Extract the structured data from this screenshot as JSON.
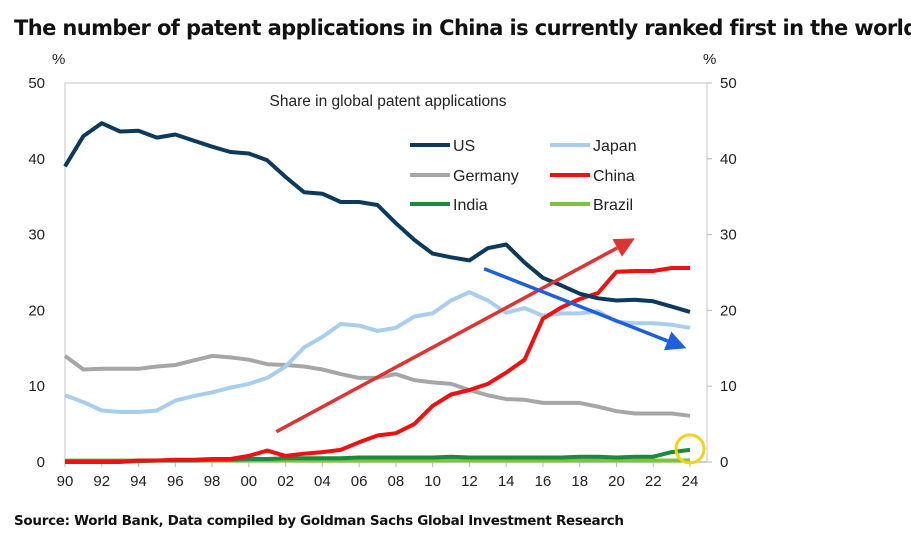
{
  "title": "The number of patent applications in China is currently ranked first in the world",
  "source": "Source: World Bank, Data compiled by Goldman Sachs Global Investment Research",
  "chart_data": {
    "type": "line",
    "title": "Share in global patent applications",
    "ylabel_left": "%",
    "ylabel_right": "%",
    "ylim": [
      0,
      50
    ],
    "yticks": [
      0,
      10,
      20,
      30,
      40,
      50
    ],
    "xlim": [
      1990,
      2024
    ],
    "xtick_labels": [
      "90",
      "92",
      "94",
      "96",
      "98",
      "00",
      "02",
      "04",
      "06",
      "08",
      "10",
      "12",
      "14",
      "16",
      "18",
      "20",
      "22",
      "24"
    ],
    "grid": false,
    "legend": "top-center",
    "x": [
      1990,
      1991,
      1992,
      1993,
      1994,
      1995,
      1996,
      1997,
      1998,
      1999,
      2000,
      2001,
      2002,
      2003,
      2004,
      2005,
      2006,
      2007,
      2008,
      2009,
      2010,
      2011,
      2012,
      2013,
      2014,
      2015,
      2016,
      2017,
      2018,
      2019,
      2020,
      2021,
      2022,
      2023,
      2024
    ],
    "series": [
      {
        "name": "US",
        "color": "#0d3a5c",
        "values": [
          39,
          43,
          44.7,
          43.6,
          43.7,
          42.8,
          43.2,
          42.4,
          41.6,
          40.9,
          40.7,
          39.8,
          37.6,
          35.6,
          35.4,
          34.3,
          34.3,
          33.9,
          31.5,
          29.3,
          27.5,
          27,
          26.6,
          28.2,
          28.7,
          26.3,
          24.3,
          23.3,
          22.2,
          21.6,
          21.3,
          21.4,
          21.2,
          20.5,
          19.8
        ]
      },
      {
        "name": "Japan",
        "color": "#a9cdee",
        "values": [
          8.8,
          7.9,
          6.8,
          6.6,
          6.6,
          6.8,
          8.1,
          8.7,
          9.2,
          9.8,
          10.3,
          11.1,
          12.6,
          15.1,
          16.5,
          18.2,
          18.0,
          17.3,
          17.7,
          19.2,
          19.6,
          21.3,
          22.4,
          21.3,
          19.7,
          20.3,
          19.3,
          19.6,
          19.6,
          19.9,
          18.5,
          18.3,
          18.3,
          18.1,
          17.7
        ]
      },
      {
        "name": "Germany",
        "color": "#a6a6a6",
        "values": [
          14,
          12.2,
          12.3,
          12.3,
          12.3,
          12.6,
          12.8,
          13.4,
          14.0,
          13.8,
          13.5,
          12.9,
          12.8,
          12.6,
          12.2,
          11.6,
          11.1,
          11.1,
          11.6,
          10.8,
          10.5,
          10.3,
          9.5,
          8.8,
          8.3,
          8.2,
          7.8,
          7.8,
          7.8,
          7.3,
          6.7,
          6.4,
          6.4,
          6.4,
          6.1
        ]
      },
      {
        "name": "China",
        "color": "#ee1111",
        "values": [
          0,
          0,
          0,
          0,
          0.2,
          0.2,
          0.3,
          0.3,
          0.4,
          0.4,
          0.8,
          1.5,
          0.8,
          1.1,
          1.3,
          1.6,
          2.6,
          3.5,
          3.8,
          5.0,
          7.4,
          8.9,
          9.5,
          10.3,
          11.8,
          13.5,
          18.9,
          20.4,
          21.5,
          22.3,
          25.1,
          25.2,
          25.2,
          25.6,
          25.6
        ]
      },
      {
        "name": "India",
        "color": "#1a8a3c",
        "values": [
          0.1,
          0.1,
          0.1,
          0.1,
          0.1,
          0.2,
          0.2,
          0.2,
          0.3,
          0.3,
          0.4,
          0.4,
          0.5,
          0.5,
          0.5,
          0.5,
          0.6,
          0.6,
          0.6,
          0.6,
          0.6,
          0.7,
          0.6,
          0.6,
          0.6,
          0.6,
          0.6,
          0.6,
          0.7,
          0.7,
          0.6,
          0.7,
          0.7,
          1.3,
          1.6
        ]
      },
      {
        "name": "Brazil",
        "color": "#7fc241",
        "values": [
          0.2,
          0.2,
          0.2,
          0.2,
          0.2,
          0.2,
          0.2,
          0.2,
          0.2,
          0.2,
          0.2,
          0.2,
          0.2,
          0.2,
          0.2,
          0.2,
          0.2,
          0.2,
          0.2,
          0.2,
          0.2,
          0.2,
          0.2,
          0.2,
          0.2,
          0.2,
          0.2,
          0.2,
          0.2,
          0.2,
          0.2,
          0.2,
          0.2,
          0.2,
          0.2
        ]
      }
    ],
    "annotations": [
      {
        "type": "arrow",
        "color": "#dd3333",
        "from": [
          2001.5,
          4
        ],
        "to": [
          2021,
          29.5
        ]
      },
      {
        "type": "arrow",
        "color": "#1f5fdd",
        "from": [
          2012.8,
          25.5
        ],
        "to": [
          2023.8,
          15
        ]
      },
      {
        "type": "circle",
        "color": "#f2d21c",
        "at": [
          2024,
          1.6
        ]
      }
    ]
  }
}
